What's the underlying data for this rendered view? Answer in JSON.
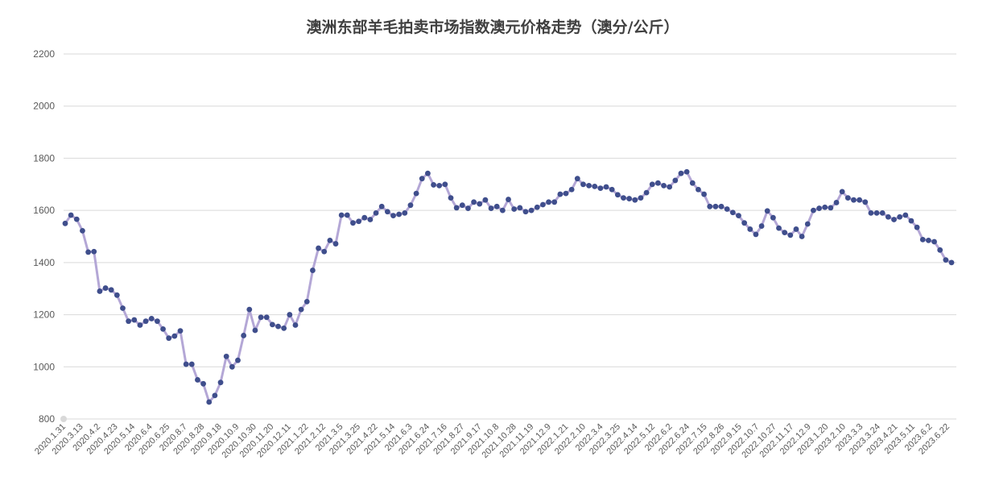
{
  "chart_data": {
    "type": "line",
    "title": "澳洲东部羊毛拍卖市场指数澳元价格走势（澳分/公斤）",
    "xlabel": "",
    "ylabel": "",
    "ylim": [
      800,
      2200
    ],
    "yticks": [
      800,
      1000,
      1200,
      1400,
      1600,
      1800,
      2000,
      2200
    ],
    "grid": true,
    "legend": "none",
    "colors": {
      "line": "#b4a7d6",
      "marker": "#3f4e8c",
      "grid": "#d9d9d9",
      "title": "#404040",
      "tick": "#595959"
    },
    "x_tick_labels": [
      "2020.1.31",
      "2020.3.13",
      "2020.4.2",
      "2020.4.23",
      "2020.5.14",
      "2020.6.4",
      "2020.6.25",
      "2020.8.7",
      "2020.8.28",
      "2020.9.18",
      "2020.10.9",
      "2020.10.30",
      "2020.11.20",
      "2020.12.11",
      "2021.1.22",
      "2021.2.12",
      "2021.3.5",
      "2021.3.25",
      "2021.4.22",
      "2021.5.14",
      "2021.6.3",
      "2021.6.24",
      "2021.7.16",
      "2021.8.27",
      "2021.9.17",
      "2021.10.8",
      "2021.10.28",
      "2021.11.19",
      "2021.12.9",
      "2022.1.21",
      "2022.2.10",
      "2022.3.4",
      "2022.3.25",
      "2022.4.14",
      "2022.5.12",
      "2022.6.2",
      "2022.6.24",
      "2022.7.15",
      "2022.8.26",
      "2022.9.15",
      "2022.10.7",
      "2022.10.27",
      "2022.11.17",
      "2022.12.9",
      "2023.1.20",
      "2023.2.10",
      "2023.3.3",
      "2023.3.24",
      "2023.4.21",
      "2023.5.11",
      "2023.6.2",
      "2023.6.22"
    ],
    "series": [
      {
        "values": [
          1550,
          1582,
          1566,
          1522,
          1440,
          1442,
          1290,
          1302,
          1295,
          1275,
          1225,
          1175,
          1180,
          1160,
          1175,
          1185,
          1175,
          1145,
          1110,
          1118,
          1138,
          1010,
          1010,
          950,
          935,
          865,
          890,
          940,
          1040,
          1000,
          1025,
          1120,
          1220,
          1140,
          1190,
          1190,
          1162,
          1155,
          1148,
          1200,
          1160,
          1220,
          1250,
          1370,
          1455,
          1442,
          1485,
          1472,
          1582,
          1582,
          1552,
          1558,
          1572,
          1565,
          1590,
          1615,
          1595,
          1580,
          1585,
          1590,
          1620,
          1665,
          1722,
          1742,
          1698,
          1695,
          1700,
          1648,
          1610,
          1620,
          1608,
          1632,
          1625,
          1640,
          1608,
          1615,
          1600,
          1642,
          1605,
          1610,
          1595,
          1600,
          1612,
          1622,
          1632,
          1632,
          1662,
          1665,
          1680,
          1722,
          1700,
          1695,
          1692,
          1685,
          1690,
          1680,
          1660,
          1648,
          1645,
          1640,
          1648,
          1668,
          1700,
          1705,
          1695,
          1690,
          1715,
          1742,
          1748,
          1705,
          1680,
          1662,
          1615,
          1615,
          1615,
          1605,
          1592,
          1580,
          1552,
          1528,
          1508,
          1540,
          1598,
          1572,
          1532,
          1515,
          1505,
          1528,
          1500,
          1548,
          1600,
          1608,
          1612,
          1610,
          1630,
          1672,
          1648,
          1640,
          1640,
          1632,
          1590,
          1590,
          1590,
          1575,
          1565,
          1575,
          1582,
          1560,
          1535,
          1488,
          1485,
          1480,
          1448,
          1410,
          1400
        ]
      }
    ]
  }
}
